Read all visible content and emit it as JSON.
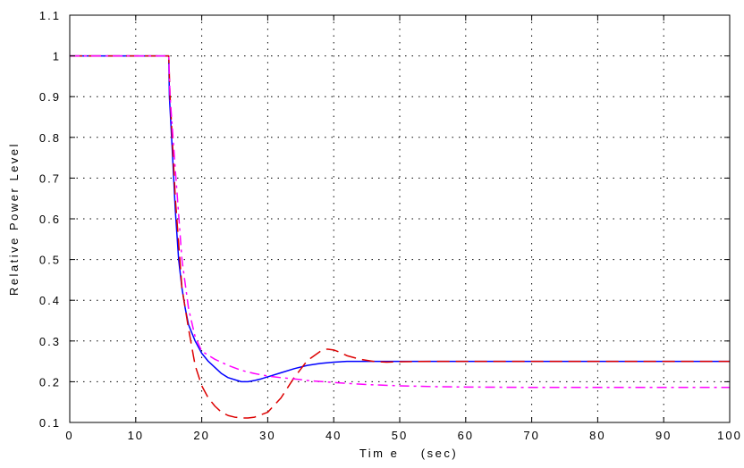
{
  "chart_data": {
    "type": "line",
    "title": "",
    "xlabel": "Tim e    (sec)",
    "ylabel": "Relative Power Level",
    "xlim": [
      0,
      100
    ],
    "ylim": [
      0.1,
      1.1
    ],
    "xticks": [
      0,
      10,
      20,
      30,
      40,
      50,
      60,
      70,
      80,
      90,
      100
    ],
    "yticks": [
      0.1,
      0.2,
      0.3,
      0.4,
      0.5,
      0.6,
      0.7,
      0.8,
      0.9,
      1,
      1.1
    ],
    "xtick_labels": [
      "0",
      "10",
      "20",
      "30",
      "40",
      "50",
      "60",
      "70",
      "80",
      "90",
      "100"
    ],
    "ytick_labels": [
      "0.1",
      "0.2",
      "0.3",
      "0.4",
      "0.5",
      "0.6",
      "0.7",
      "0.8",
      "0.9",
      "1",
      "1.1"
    ],
    "grid": true,
    "legend": "none",
    "series": [
      {
        "color": "#0000ff",
        "style": "solid",
        "x": [
          0,
          15,
          15.1,
          15.5,
          16,
          16.5,
          17,
          17.5,
          18,
          19,
          20,
          21,
          22,
          23,
          24,
          25,
          26,
          27,
          28,
          29,
          30,
          32,
          34,
          36,
          38,
          40,
          42,
          45,
          50,
          60,
          70,
          80,
          90,
          100
        ],
        "y": [
          1.0,
          1.0,
          0.9,
          0.78,
          0.62,
          0.5,
          0.43,
          0.38,
          0.34,
          0.3,
          0.27,
          0.25,
          0.235,
          0.22,
          0.21,
          0.205,
          0.2,
          0.2,
          0.203,
          0.207,
          0.212,
          0.222,
          0.232,
          0.24,
          0.245,
          0.248,
          0.25,
          0.25,
          0.25,
          0.25,
          0.25,
          0.25,
          0.25,
          0.25
        ]
      },
      {
        "color": "#dd0000",
        "style": "dashed",
        "x": [
          0,
          15,
          15.2,
          16,
          17,
          18,
          19,
          20,
          21,
          22,
          23,
          24,
          25,
          26,
          27,
          28,
          30,
          32,
          34,
          36,
          38,
          39,
          40,
          41,
          42,
          44,
          46,
          48,
          50,
          55,
          60,
          70,
          80,
          90,
          100
        ],
        "y": [
          1.0,
          1.0,
          0.9,
          0.65,
          0.43,
          0.33,
          0.24,
          0.19,
          0.16,
          0.14,
          0.125,
          0.117,
          0.113,
          0.111,
          0.111,
          0.113,
          0.125,
          0.16,
          0.21,
          0.252,
          0.275,
          0.28,
          0.278,
          0.272,
          0.264,
          0.255,
          0.25,
          0.248,
          0.249,
          0.25,
          0.25,
          0.25,
          0.25,
          0.25,
          0.25
        ]
      },
      {
        "color": "#ff00ff",
        "style": "dashdot",
        "x": [
          0,
          15,
          15.2,
          16,
          17,
          18,
          19,
          20,
          22,
          24,
          26,
          28,
          30,
          32,
          34,
          36,
          40,
          45,
          50,
          55,
          60,
          70,
          80,
          90,
          100
        ],
        "y": [
          1.0,
          1.0,
          0.9,
          0.72,
          0.5,
          0.38,
          0.31,
          0.275,
          0.255,
          0.24,
          0.228,
          0.22,
          0.214,
          0.21,
          0.207,
          0.203,
          0.198,
          0.193,
          0.19,
          0.188,
          0.187,
          0.186,
          0.186,
          0.186,
          0.186
        ]
      }
    ]
  }
}
